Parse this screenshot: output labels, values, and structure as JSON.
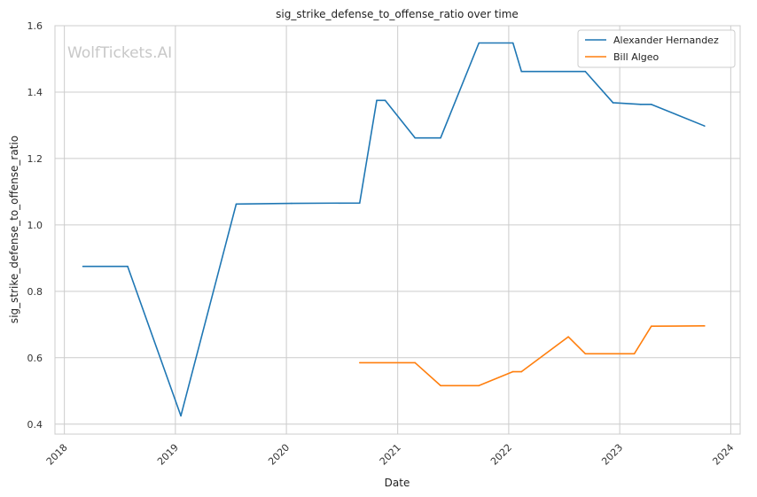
{
  "chart_data": {
    "type": "line",
    "title": "sig_strike_defense_to_offense_ratio over time",
    "xlabel": "Date",
    "ylabel": "sig_strike_defense_to_offense_ratio",
    "watermark": "WolfTickets.AI",
    "x_ticks": [
      "2018",
      "2019",
      "2020",
      "2021",
      "2022",
      "2023",
      "2024"
    ],
    "y_ticks": [
      "0.4",
      "0.6",
      "0.8",
      "1.0",
      "1.2",
      "1.4",
      "1.6"
    ],
    "xlim": [
      "2017-12-01",
      "2024-02-01"
    ],
    "ylim": [
      0.37,
      1.6
    ],
    "grid": true,
    "legend_position": "top-right",
    "series": [
      {
        "name": "Alexander Hernandez",
        "color": "#1f77b4",
        "points": [
          [
            "2018-03-03",
            0.875
          ],
          [
            "2018-07-28",
            0.875
          ],
          [
            "2019-01-19",
            0.425
          ],
          [
            "2019-07-20",
            1.063
          ],
          [
            "2020-01-18",
            1.065
          ],
          [
            "2020-08-29",
            1.066
          ],
          [
            "2020-10-24",
            1.375
          ],
          [
            "2020-11-21",
            1.375
          ],
          [
            "2021-02-27",
            1.262
          ],
          [
            "2021-05-22",
            1.262
          ],
          [
            "2021-09-25",
            1.548
          ],
          [
            "2022-01-15",
            1.548
          ],
          [
            "2022-02-12",
            1.462
          ],
          [
            "2022-09-10",
            1.462
          ],
          [
            "2022-12-10",
            1.368
          ],
          [
            "2023-03-11",
            1.363
          ],
          [
            "2023-04-15",
            1.363
          ],
          [
            "2023-10-07",
            1.298
          ]
        ]
      },
      {
        "name": "Bill Algeo",
        "color": "#ff7f0e",
        "points": [
          [
            "2020-08-29",
            0.585
          ],
          [
            "2021-02-27",
            0.585
          ],
          [
            "2021-05-22",
            0.516
          ],
          [
            "2021-09-25",
            0.516
          ],
          [
            "2022-01-15",
            0.558
          ],
          [
            "2022-02-12",
            0.558
          ],
          [
            "2022-07-16",
            0.663
          ],
          [
            "2022-09-10",
            0.612
          ],
          [
            "2023-02-18",
            0.612
          ],
          [
            "2023-04-15",
            0.695
          ],
          [
            "2023-10-07",
            0.696
          ]
        ]
      }
    ]
  }
}
